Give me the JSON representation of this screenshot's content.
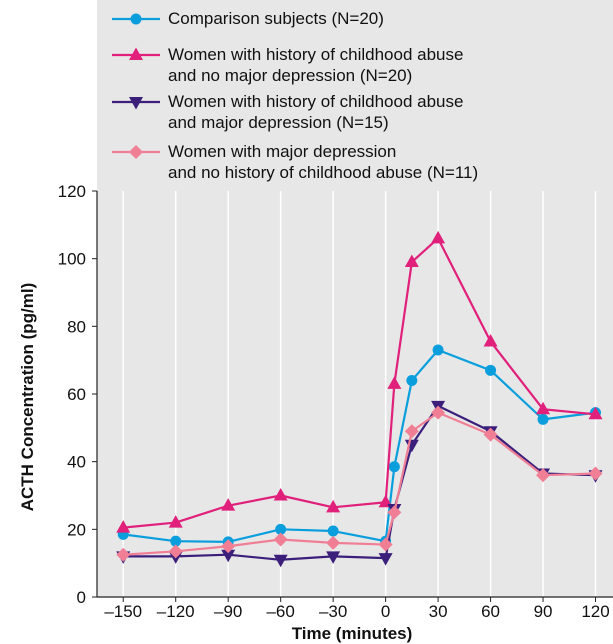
{
  "chart_data": {
    "type": "line",
    "title": "",
    "xlabel": "Time (minutes)",
    "ylabel": "ACTH Concentration (pg/ml)",
    "xlim": [
      -165,
      130
    ],
    "ylim": [
      0,
      120
    ],
    "x_ticks": [
      -150,
      -120,
      -90,
      -60,
      -30,
      0,
      30,
      60,
      90,
      120
    ],
    "x_tick_labels": [
      "–150",
      "–120",
      "–90",
      "–60",
      "–30",
      "0",
      "30",
      "60",
      "90",
      "120"
    ],
    "y_ticks": [
      0,
      20,
      40,
      60,
      80,
      100,
      120
    ],
    "y_tick_labels": [
      "0",
      "20",
      "40",
      "60",
      "80",
      "100",
      "120"
    ],
    "grid": "vertical",
    "legend_position": "top",
    "series": [
      {
        "name": "Comparison subjects (N=20)",
        "legend_lines": [
          "Comparison subjects (N=20)"
        ],
        "color": "#0a9fdc",
        "marker": "circle",
        "x": [
          -150,
          -120,
          -90,
          -60,
          -30,
          0,
          5,
          15,
          30,
          60,
          90,
          120
        ],
        "y": [
          18.5,
          16.5,
          16.3,
          20.0,
          19.5,
          16.5,
          38.5,
          64.0,
          73.0,
          67.0,
          52.5,
          54.5
        ]
      },
      {
        "name": "Women with history of childhood abuse and no major depression (N=20)",
        "legend_lines": [
          "Women with history of childhood abuse",
          "and no major depression (N=20)"
        ],
        "color": "#e0207a",
        "marker": "triangle-up",
        "x": [
          -150,
          -120,
          -90,
          -60,
          -30,
          0,
          5,
          15,
          30,
          60,
          90,
          120
        ],
        "y": [
          20.5,
          22.0,
          27.0,
          30.0,
          26.5,
          28.0,
          63.0,
          99.0,
          106.0,
          75.5,
          55.5,
          54.0
        ]
      },
      {
        "name": "Women with history of childhood abuse and major depression (N=15)",
        "legend_lines": [
          "Women with history of childhood abuse",
          "and major depression (N=15)"
        ],
        "color": "#3b1f7a",
        "marker": "triangle-down",
        "x": [
          -150,
          -120,
          -90,
          -60,
          -30,
          0,
          5,
          15,
          30,
          60,
          90,
          120
        ],
        "y": [
          12.0,
          12.0,
          12.5,
          11.0,
          12.0,
          11.5,
          26.0,
          45.0,
          56.5,
          49.0,
          36.5,
          36.0
        ]
      },
      {
        "name": "Women with major depression and no history of childhood abuse (N=11)",
        "legend_lines": [
          "Women with major depression",
          "and no history of childhood abuse (N=11)"
        ],
        "color": "#f07f95",
        "marker": "diamond",
        "x": [
          -150,
          -120,
          -90,
          -60,
          -30,
          0,
          5,
          15,
          30,
          60,
          90,
          120
        ],
        "y": [
          12.5,
          13.5,
          15.0,
          17.0,
          16.0,
          15.5,
          25.0,
          49.0,
          54.5,
          48.0,
          36.0,
          36.5
        ]
      }
    ]
  }
}
